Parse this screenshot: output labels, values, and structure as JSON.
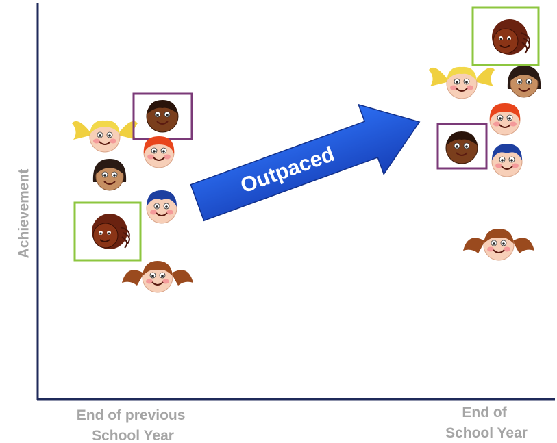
{
  "axis_label": "Achievement",
  "x_labels": [
    {
      "lines": [
        "End of previous",
        "School Year"
      ]
    },
    {
      "lines": [
        "End of",
        "School Year"
      ]
    }
  ],
  "arrow_label": "Outpaced"
}
